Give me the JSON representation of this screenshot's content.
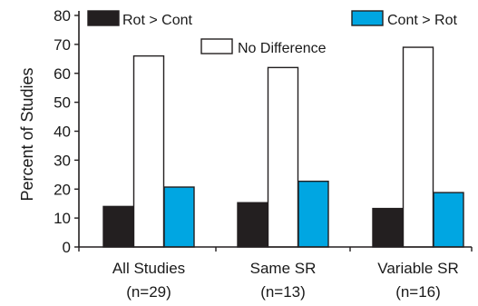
{
  "chart_data": {
    "type": "bar",
    "categories": [
      {
        "line1": "All Studies",
        "line2": "(n=29)"
      },
      {
        "line1": "Same SR",
        "line2": "(n=13)"
      },
      {
        "line1": "Variable SR",
        "line2": "(n=16)"
      }
    ],
    "series": [
      {
        "name": "Rot > Cont",
        "color": "#231f20",
        "values": [
          14,
          15.3,
          13.3
        ]
      },
      {
        "name": "No Difference",
        "color": "#ffffff",
        "values": [
          66,
          62,
          69
        ]
      },
      {
        "name": "Cont > Rot",
        "color": "#00a6e2",
        "values": [
          20.7,
          22.7,
          18.8
        ]
      }
    ],
    "ylabel": "Percent of Studies",
    "ylim": [
      0,
      80
    ],
    "yticks": [
      "0",
      "10",
      "20",
      "30",
      "40",
      "50",
      "60",
      "70",
      "80"
    ],
    "grid": false,
    "legend": "top"
  }
}
